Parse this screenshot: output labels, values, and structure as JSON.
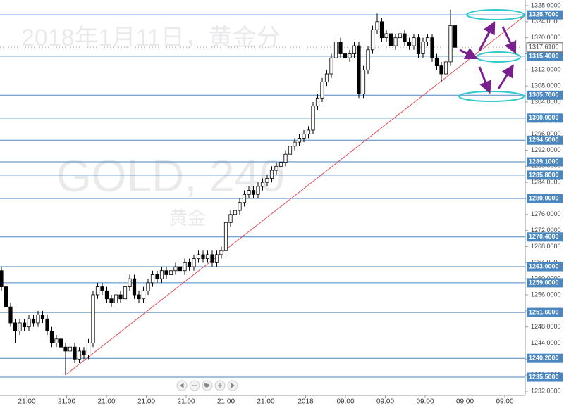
{
  "chart_data": {
    "type": "candlestick",
    "watermarks": [
      "2018年1月11日，黄金分",
      "GOLD, 240",
      "黄金"
    ],
    "ylim": [
      1232,
      1328
    ],
    "yticks": [
      {
        "value": 1232,
        "label": "1232.0000"
      },
      {
        "value": 1236,
        "label": "1236.0000"
      },
      {
        "value": 1240,
        "label": "1240.0000"
      },
      {
        "value": 1244,
        "label": "1244.0000"
      },
      {
        "value": 1248,
        "label": "1248.0000"
      },
      {
        "value": 1252,
        "label": "1252.0000"
      },
      {
        "value": 1256,
        "label": "1256.0000"
      },
      {
        "value": 1260,
        "label": "1260.0000"
      },
      {
        "value": 1264,
        "label": "1264.0000"
      },
      {
        "value": 1268,
        "label": "1268.0000"
      },
      {
        "value": 1272,
        "label": "1272.0000"
      },
      {
        "value": 1276,
        "label": "1276.0000"
      },
      {
        "value": 1280,
        "label": "1280.0000"
      },
      {
        "value": 1284,
        "label": "1284.0000"
      },
      {
        "value": 1288,
        "label": "1288.0000"
      },
      {
        "value": 1292,
        "label": "1292.0000"
      },
      {
        "value": 1296,
        "label": "1296.0000"
      },
      {
        "value": 1300,
        "label": "1300.0000"
      },
      {
        "value": 1304,
        "label": "1304.0000"
      },
      {
        "value": 1308,
        "label": "1308.0000"
      },
      {
        "value": 1312,
        "label": "1312.0000"
      },
      {
        "value": 1316,
        "label": "1316.0000"
      },
      {
        "value": 1320,
        "label": "1320.0000"
      },
      {
        "value": 1324,
        "label": "1324.0000"
      },
      {
        "value": 1328,
        "label": "1328.0000"
      }
    ],
    "levels": [
      {
        "value": 1325.7,
        "label": "1325.7000"
      },
      {
        "value": 1315.4,
        "label": "1315.4000"
      },
      {
        "value": 1305.7,
        "label": "1305.7000"
      },
      {
        "value": 1300,
        "label": "1300.0000"
      },
      {
        "value": 1294.5,
        "label": "1294.5000"
      },
      {
        "value": 1289.1,
        "label": "1289.1000"
      },
      {
        "value": 1285.8,
        "label": "1285.8000"
      },
      {
        "value": 1280,
        "label": "1280.0000"
      },
      {
        "value": 1270.4,
        "label": "1270.4000"
      },
      {
        "value": 1263,
        "label": "1263.0000"
      },
      {
        "value": 1259,
        "label": "1259.0000"
      },
      {
        "value": 1251.6,
        "label": "1251.6000"
      },
      {
        "value": 1240.2,
        "label": "1240.2000"
      },
      {
        "value": 1235.5,
        "label": "1235.5000"
      }
    ],
    "level_color": "#4a86c0",
    "current_price": {
      "value": 1317.61,
      "label": "1317.6100"
    },
    "xtick_labels": [
      "21:00",
      "21:00",
      "21:00",
      "21:00",
      "21:00",
      "21:00",
      "21:00",
      "2018",
      "09:00",
      "09:00",
      "09:00",
      "09:00",
      "09:00"
    ],
    "up_color": "#ffffff",
    "down_color": "#000000",
    "open": [
      1262,
      1258,
      1253,
      1249,
      1247,
      1249,
      1248,
      1250,
      1249,
      1251,
      1250,
      1247,
      1244,
      1245,
      1243,
      1242,
      1243,
      1240,
      1242,
      1241,
      1244,
      1256,
      1258,
      1257,
      1255,
      1254,
      1256,
      1255,
      1258,
      1260,
      1256,
      1255,
      1257,
      1259,
      1261,
      1260,
      1262,
      1261,
      1262,
      1263,
      1262,
      1264,
      1263,
      1265,
      1266,
      1265,
      1266,
      1264,
      1266,
      1267,
      1274,
      1276,
      1277,
      1279,
      1281,
      1282,
      1281,
      1283,
      1284,
      1285,
      1287,
      1288,
      1289,
      1291,
      1293,
      1294,
      1295,
      1296,
      1297,
      1303,
      1305,
      1309,
      1311,
      1315,
      1319,
      1316,
      1315,
      1316,
      1318,
      1306,
      1312,
      1317,
      1322,
      1324,
      1320,
      1321,
      1318,
      1320,
      1321,
      1319,
      1318,
      1320,
      1316,
      1319,
      1320,
      1315,
      1313,
      1311,
      1314,
      1323
    ],
    "high": [
      1263,
      1259,
      1254,
      1250,
      1250,
      1250,
      1251,
      1251,
      1252,
      1252,
      1251,
      1248,
      1246,
      1246,
      1244,
      1244,
      1244,
      1243,
      1243,
      1245,
      1257,
      1259,
      1259,
      1258,
      1256,
      1257,
      1257,
      1259,
      1261,
      1261,
      1257,
      1258,
      1260,
      1262,
      1262,
      1263,
      1263,
      1263,
      1264,
      1264,
      1265,
      1265,
      1266,
      1267,
      1267,
      1267,
      1267,
      1267,
      1268,
      1275,
      1277,
      1278,
      1280,
      1282,
      1283,
      1283,
      1284,
      1285,
      1286,
      1288,
      1289,
      1290,
      1292,
      1294,
      1295,
      1296,
      1297,
      1298,
      1304,
      1306,
      1310,
      1312,
      1316,
      1320,
      1320,
      1317,
      1317,
      1319,
      1319,
      1313,
      1318,
      1323,
      1326,
      1325,
      1322,
      1322,
      1321,
      1322,
      1322,
      1320,
      1321,
      1321,
      1320,
      1321,
      1321,
      1316,
      1314,
      1315,
      1327,
      1324
    ],
    "low": [
      1257,
      1252,
      1248,
      1244,
      1246,
      1247,
      1247,
      1248,
      1248,
      1249,
      1246,
      1243,
      1243,
      1242,
      1236,
      1241,
      1239,
      1239,
      1240,
      1240,
      1243,
      1255,
      1256,
      1254,
      1253,
      1253,
      1254,
      1254,
      1257,
      1255,
      1254,
      1254,
      1256,
      1258,
      1259,
      1259,
      1260,
      1260,
      1261,
      1261,
      1261,
      1262,
      1262,
      1264,
      1264,
      1264,
      1263,
      1263,
      1265,
      1266,
      1273,
      1275,
      1276,
      1278,
      1280,
      1280,
      1280,
      1282,
      1283,
      1284,
      1286,
      1287,
      1288,
      1290,
      1292,
      1293,
      1294,
      1295,
      1296,
      1302,
      1304,
      1308,
      1310,
      1314,
      1315,
      1314,
      1314,
      1315,
      1305,
      1305,
      1311,
      1316,
      1321,
      1319,
      1319,
      1317,
      1317,
      1319,
      1318,
      1317,
      1317,
      1315,
      1315,
      1318,
      1314,
      1312,
      1309,
      1310,
      1313,
      1316
    ],
    "close": [
      1258,
      1253,
      1249,
      1247,
      1249,
      1248,
      1250,
      1249,
      1251,
      1250,
      1247,
      1244,
      1245,
      1243,
      1242,
      1243,
      1240,
      1242,
      1241,
      1244,
      1256,
      1258,
      1257,
      1255,
      1254,
      1256,
      1255,
      1258,
      1260,
      1256,
      1255,
      1257,
      1259,
      1261,
      1260,
      1262,
      1261,
      1262,
      1263,
      1262,
      1264,
      1263,
      1265,
      1266,
      1265,
      1266,
      1264,
      1266,
      1267,
      1274,
      1276,
      1277,
      1279,
      1281,
      1282,
      1281,
      1283,
      1284,
      1285,
      1287,
      1288,
      1289,
      1291,
      1293,
      1294,
      1295,
      1296,
      1297,
      1303,
      1305,
      1309,
      1311,
      1315,
      1319,
      1316,
      1315,
      1316,
      1318,
      1306,
      1312,
      1317,
      1322,
      1324,
      1320,
      1321,
      1318,
      1320,
      1321,
      1319,
      1318,
      1320,
      1316,
      1319,
      1320,
      1315,
      1313,
      1311,
      1314,
      1323,
      1317.61
    ]
  }
}
